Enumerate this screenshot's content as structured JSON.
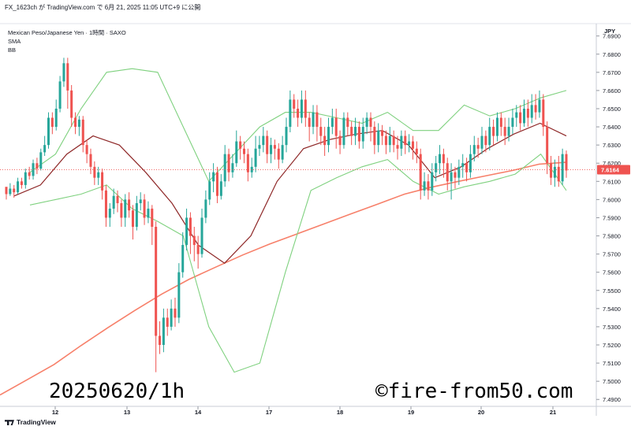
{
  "header": {
    "text": "FX_1623ch が TradingView.com で 6月 21, 2025 11:05 UTC+9 に公開"
  },
  "legend": {
    "symbol": "Mexican Peso/Japanese Yen · 1時間 · SAXO",
    "indicator_1": "SMA",
    "indicator_2": "BB"
  },
  "currency_label": "JPY",
  "price_tag": "7.6164",
  "watermark_left": "20250620/1h",
  "watermark_right": "©fire-from50.com",
  "footer_logo": "TradingView",
  "colors": {
    "bull": "#26a69a",
    "bear": "#ef5350",
    "bb": "#7fd17f",
    "basis": "#8e2727",
    "sma": "#f7806a",
    "price_tag_bg": "#ef5350"
  },
  "chart_data": {
    "type": "candlestick",
    "timeframe": "1h",
    "x_ticks": [
      "12",
      "13",
      "14",
      "17",
      "18",
      "19",
      "20",
      "21"
    ],
    "y_ticks": [
      "7.6900",
      "7.6800",
      "7.6700",
      "7.6600",
      "7.6500",
      "7.6400",
      "7.6300",
      "7.6200",
      "7.6100",
      "7.6000",
      "7.5900",
      "7.5800",
      "7.5700",
      "7.5600",
      "7.5500",
      "7.5400",
      "7.5300",
      "7.5200",
      "7.5100",
      "7.5000",
      "7.4900"
    ],
    "ylim": [
      7.4862,
      7.6968
    ],
    "last_price": 7.6164,
    "candles": [
      [
        7.607,
        7.603,
        7.605,
        7.6
      ],
      [
        7.603,
        7.606,
        7.609,
        7.602
      ],
      [
        7.606,
        7.604,
        7.608,
        7.601
      ],
      [
        7.604,
        7.61,
        7.612,
        7.603
      ],
      [
        7.61,
        7.608,
        7.612,
        7.606
      ],
      [
        7.608,
        7.615,
        7.617,
        7.606
      ],
      [
        7.615,
        7.613,
        7.618,
        7.611
      ],
      [
        7.613,
        7.62,
        7.622,
        7.611
      ],
      [
        7.62,
        7.617,
        7.623,
        7.614
      ],
      [
        7.617,
        7.626,
        7.628,
        7.616
      ],
      [
        7.626,
        7.63,
        7.635,
        7.624
      ],
      [
        7.63,
        7.645,
        7.648,
        7.628
      ],
      [
        7.645,
        7.64,
        7.648,
        7.636
      ],
      [
        7.64,
        7.65,
        7.655,
        7.638
      ],
      [
        7.65,
        7.665,
        7.668,
        7.648
      ],
      [
        7.665,
        7.675,
        7.678,
        7.662
      ],
      [
        7.675,
        7.66,
        7.678,
        7.65
      ],
      [
        7.66,
        7.645,
        7.663,
        7.64
      ],
      [
        7.645,
        7.64,
        7.648,
        7.636
      ],
      [
        7.64,
        7.644,
        7.646,
        7.635
      ],
      [
        7.644,
        7.63,
        7.646,
        7.626
      ],
      [
        7.63,
        7.625,
        7.633,
        7.62
      ],
      [
        7.625,
        7.618,
        7.628,
        7.614
      ],
      [
        7.618,
        7.612,
        7.621,
        7.608
      ],
      [
        7.612,
        7.615,
        7.618,
        7.608
      ],
      [
        7.615,
        7.605,
        7.617,
        7.6
      ],
      [
        7.605,
        7.59,
        7.608,
        7.585
      ],
      [
        7.59,
        7.595,
        7.598,
        7.585
      ],
      [
        7.595,
        7.602,
        7.606,
        7.592
      ],
      [
        7.602,
        7.598,
        7.605,
        7.593
      ],
      [
        7.598,
        7.59,
        7.6,
        7.585
      ],
      [
        7.59,
        7.6,
        7.603,
        7.585
      ],
      [
        7.6,
        7.594,
        7.604,
        7.59
      ],
      [
        7.594,
        7.585,
        7.597,
        7.578
      ],
      [
        7.585,
        7.598,
        7.602,
        7.583
      ],
      [
        7.598,
        7.6,
        7.604,
        7.594
      ],
      [
        7.6,
        7.59,
        7.603,
        7.586
      ],
      [
        7.59,
        7.595,
        7.599,
        7.587
      ],
      [
        7.595,
        7.585,
        7.597,
        7.575
      ],
      [
        7.585,
        7.525,
        7.588,
        7.505
      ],
      [
        7.525,
        7.52,
        7.533,
        7.515
      ],
      [
        7.52,
        7.535,
        7.54,
        7.516
      ],
      [
        7.535,
        7.53,
        7.54,
        7.525
      ],
      [
        7.53,
        7.54,
        7.545,
        7.528
      ],
      [
        7.54,
        7.535,
        7.546,
        7.53
      ],
      [
        7.535,
        7.56,
        7.565,
        7.532
      ],
      [
        7.56,
        7.575,
        7.582,
        7.557
      ],
      [
        7.575,
        7.59,
        7.595,
        7.572
      ],
      [
        7.59,
        7.58,
        7.593,
        7.57
      ],
      [
        7.58,
        7.575,
        7.585,
        7.566
      ],
      [
        7.575,
        7.57,
        7.58,
        7.562
      ],
      [
        7.57,
        7.59,
        7.595,
        7.568
      ],
      [
        7.59,
        7.6,
        7.605,
        7.587
      ],
      [
        7.6,
        7.61,
        7.615,
        7.597
      ],
      [
        7.61,
        7.615,
        7.62,
        7.604
      ],
      [
        7.615,
        7.602,
        7.618,
        7.598
      ],
      [
        7.602,
        7.61,
        7.614,
        7.6
      ],
      [
        7.61,
        7.625,
        7.63,
        7.607
      ],
      [
        7.625,
        7.615,
        7.628,
        7.61
      ],
      [
        7.615,
        7.62,
        7.625,
        7.612
      ],
      [
        7.62,
        7.632,
        7.638,
        7.618
      ],
      [
        7.632,
        7.628,
        7.635,
        7.622
      ],
      [
        7.628,
        7.625,
        7.632,
        7.62
      ],
      [
        7.625,
        7.615,
        7.628,
        7.61
      ],
      [
        7.615,
        7.618,
        7.623,
        7.612
      ],
      [
        7.618,
        7.628,
        7.635,
        7.615
      ],
      [
        7.628,
        7.63,
        7.635,
        7.624
      ],
      [
        7.63,
        7.635,
        7.64,
        7.626
      ],
      [
        7.635,
        7.625,
        7.638,
        7.62
      ],
      [
        7.625,
        7.63,
        7.634,
        7.62
      ],
      [
        7.63,
        7.628,
        7.633,
        7.622
      ],
      [
        7.628,
        7.622,
        7.631,
        7.617
      ],
      [
        7.622,
        7.63,
        7.635,
        7.62
      ],
      [
        7.63,
        7.64,
        7.645,
        7.626
      ],
      [
        7.64,
        7.655,
        7.66,
        7.637
      ],
      [
        7.655,
        7.65,
        7.658,
        7.645
      ],
      [
        7.65,
        7.645,
        7.655,
        7.64
      ],
      [
        7.645,
        7.655,
        7.66,
        7.642
      ],
      [
        7.655,
        7.645,
        7.66,
        7.64
      ],
      [
        7.645,
        7.64,
        7.648,
        7.632
      ],
      [
        7.64,
        7.648,
        7.652,
        7.636
      ],
      [
        7.648,
        7.64,
        7.652,
        7.632
      ],
      [
        7.64,
        7.635,
        7.645,
        7.63
      ],
      [
        7.635,
        7.63,
        7.64,
        7.624
      ],
      [
        7.63,
        7.64,
        7.645,
        7.626
      ],
      [
        7.64,
        7.645,
        7.65,
        7.636
      ],
      [
        7.645,
        7.635,
        7.65,
        7.628
      ],
      [
        7.635,
        7.63,
        7.638,
        7.625
      ],
      [
        7.63,
        7.645,
        7.648,
        7.628
      ],
      [
        7.645,
        7.64,
        7.648,
        7.635
      ],
      [
        7.64,
        7.635,
        7.643,
        7.63
      ],
      [
        7.635,
        7.64,
        7.645,
        7.63
      ],
      [
        7.64,
        7.632,
        7.643,
        7.628
      ],
      [
        7.632,
        7.64,
        7.645,
        7.628
      ],
      [
        7.64,
        7.645,
        7.648,
        7.636
      ],
      [
        7.645,
        7.64,
        7.648,
        7.632
      ],
      [
        7.64,
        7.63,
        7.643,
        7.625
      ],
      [
        7.63,
        7.638,
        7.642,
        7.626
      ],
      [
        7.638,
        7.635,
        7.641,
        7.63
      ],
      [
        7.635,
        7.63,
        7.638,
        7.625
      ],
      [
        7.63,
        7.635,
        7.64,
        7.626
      ],
      [
        7.635,
        7.63,
        7.638,
        7.626
      ],
      [
        7.63,
        7.628,
        7.635,
        7.622
      ],
      [
        7.628,
        7.635,
        7.638,
        7.624
      ],
      [
        7.635,
        7.63,
        7.638,
        7.625
      ],
      [
        7.63,
        7.632,
        7.636,
        7.626
      ],
      [
        7.632,
        7.628,
        7.635,
        7.622
      ],
      [
        7.628,
        7.625,
        7.632,
        7.62
      ],
      [
        7.625,
        7.605,
        7.628,
        7.6
      ],
      [
        7.605,
        7.61,
        7.615,
        7.602
      ],
      [
        7.61,
        7.605,
        7.614,
        7.6
      ],
      [
        7.605,
        7.615,
        7.62,
        7.602
      ],
      [
        7.615,
        7.62,
        7.624,
        7.61
      ],
      [
        7.62,
        7.625,
        7.63,
        7.614
      ],
      [
        7.625,
        7.62,
        7.628,
        7.612
      ],
      [
        7.62,
        7.61,
        7.623,
        7.605
      ],
      [
        7.61,
        7.615,
        7.62,
        7.6
      ],
      [
        7.615,
        7.612,
        7.618,
        7.606
      ],
      [
        7.612,
        7.618,
        7.622,
        7.608
      ],
      [
        7.618,
        7.62,
        7.625,
        7.612
      ],
      [
        7.62,
        7.615,
        7.623,
        7.61
      ],
      [
        7.615,
        7.625,
        7.63,
        7.612
      ],
      [
        7.625,
        7.63,
        7.635,
        7.621
      ],
      [
        7.63,
        7.628,
        7.634,
        7.623
      ],
      [
        7.628,
        7.635,
        7.64,
        7.625
      ],
      [
        7.635,
        7.63,
        7.638,
        7.626
      ],
      [
        7.63,
        7.64,
        7.645,
        7.627
      ],
      [
        7.64,
        7.635,
        7.644,
        7.63
      ],
      [
        7.635,
        7.645,
        7.648,
        7.632
      ],
      [
        7.645,
        7.64,
        7.648,
        7.635
      ],
      [
        7.64,
        7.635,
        7.645,
        7.63
      ],
      [
        7.635,
        7.64,
        7.645,
        7.632
      ],
      [
        7.64,
        7.645,
        7.65,
        7.636
      ],
      [
        7.645,
        7.648,
        7.652,
        7.64
      ],
      [
        7.648,
        7.642,
        7.652,
        7.638
      ],
      [
        7.642,
        7.65,
        7.655,
        7.64
      ],
      [
        7.65,
        7.645,
        7.655,
        7.64
      ],
      [
        7.645,
        7.652,
        7.658,
        7.642
      ],
      [
        7.652,
        7.648,
        7.658,
        7.644
      ],
      [
        7.648,
        7.655,
        7.66,
        7.645
      ],
      [
        7.655,
        7.64,
        7.658,
        7.635
      ],
      [
        7.64,
        7.62,
        7.643,
        7.614
      ],
      [
        7.62,
        7.612,
        7.624,
        7.608
      ],
      [
        7.612,
        7.618,
        7.622,
        7.607
      ],
      [
        7.618,
        7.61,
        7.624,
        7.607
      ],
      [
        7.61,
        7.625,
        7.628,
        7.608
      ],
      [
        7.625,
        7.616,
        7.627,
        7.612
      ]
    ],
    "sma_long": [
      7.4925,
      7.5008,
      7.5092,
      7.5196,
      7.5295,
      7.539,
      7.548,
      7.556,
      7.5628,
      7.5695,
      7.5755,
      7.581,
      7.5865,
      7.592,
      7.5975,
      7.603,
      7.6068,
      7.61,
      7.613,
      7.616,
      7.6195,
      7.6205
    ],
    "bb_upper": [
      7.615,
      7.625,
      7.65,
      7.67,
      7.672,
      7.67,
      7.64,
      7.61,
      7.625,
      7.64,
      7.648,
      7.648,
      7.645,
      7.642,
      7.648,
      7.638,
      7.638,
      7.652,
      7.646,
      7.65,
      7.656,
      7.66
    ],
    "bb_basis": [
      7.602,
      7.608,
      7.625,
      7.635,
      7.63,
      7.615,
      7.598,
      7.575,
      7.565,
      7.58,
      7.61,
      7.628,
      7.633,
      7.636,
      7.638,
      7.63,
      7.612,
      7.618,
      7.628,
      7.636,
      7.642,
      7.635
    ],
    "bb_lower": [
      7.597,
      7.6,
      7.603,
      7.608,
      7.595,
      7.588,
      7.58,
      7.53,
      7.505,
      7.51,
      7.56,
      7.605,
      7.612,
      7.618,
      7.622,
      7.61,
      7.603,
      7.607,
      7.61,
      7.614,
      7.625,
      7.605
    ]
  }
}
